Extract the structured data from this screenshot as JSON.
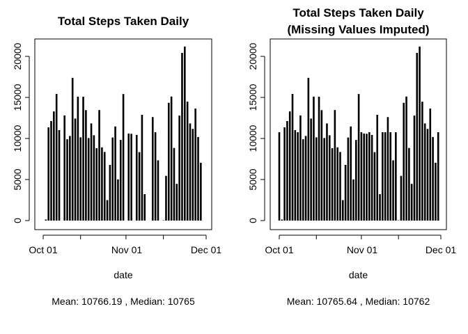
{
  "chart_data": [
    {
      "type": "bar",
      "title": "Total Steps Taken Daily",
      "xlabel": "date",
      "ylabel": "",
      "subtitle": "Mean: 10766.19 , Median: 10765",
      "xticks": [
        "Oct 01",
        "Nov 01",
        "Dec 01"
      ],
      "yticks": [
        "0",
        "5000",
        "10000",
        "15000",
        "20000"
      ],
      "xlim": [
        "2012-10-01",
        "2012-12-01"
      ],
      "ylim": [
        0,
        21500
      ],
      "grid": false,
      "x": [
        "2012-10-01",
        "2012-10-02",
        "2012-10-03",
        "2012-10-04",
        "2012-10-05",
        "2012-10-06",
        "2012-10-07",
        "2012-10-08",
        "2012-10-09",
        "2012-10-10",
        "2012-10-11",
        "2012-10-12",
        "2012-10-13",
        "2012-10-14",
        "2012-10-15",
        "2012-10-16",
        "2012-10-17",
        "2012-10-18",
        "2012-10-19",
        "2012-10-20",
        "2012-10-21",
        "2012-10-22",
        "2012-10-23",
        "2012-10-24",
        "2012-10-25",
        "2012-10-26",
        "2012-10-27",
        "2012-10-28",
        "2012-10-29",
        "2012-10-30",
        "2012-10-31",
        "2012-11-01",
        "2012-11-02",
        "2012-11-03",
        "2012-11-04",
        "2012-11-05",
        "2012-11-06",
        "2012-11-07",
        "2012-11-08",
        "2012-11-09",
        "2012-11-10",
        "2012-11-11",
        "2012-11-12",
        "2012-11-13",
        "2012-11-14",
        "2012-11-15",
        "2012-11-16",
        "2012-11-17",
        "2012-11-18",
        "2012-11-19",
        "2012-11-20",
        "2012-11-21",
        "2012-11-22",
        "2012-11-23",
        "2012-11-24",
        "2012-11-25",
        "2012-11-26",
        "2012-11-27",
        "2012-11-28",
        "2012-11-29",
        "2012-11-30"
      ],
      "values": [
        0,
        126,
        11352,
        12116,
        13294,
        15420,
        11015,
        0,
        12811,
        9900,
        10304,
        17382,
        12426,
        15098,
        10139,
        15084,
        13452,
        10056,
        11829,
        10395,
        8821,
        13460,
        8918,
        8355,
        2492,
        6778,
        10119,
        11458,
        5018,
        9819,
        15414,
        0,
        10600,
        10571,
        0,
        10439,
        8334,
        12883,
        3219,
        0,
        0,
        12608,
        10765,
        7336,
        0,
        41,
        5441,
        14339,
        15110,
        8841,
        4472,
        12787,
        20427,
        21194,
        14478,
        11834,
        11162,
        13646,
        10183,
        7047,
        0
      ]
    },
    {
      "type": "bar",
      "title": "Total Steps Taken Daily",
      "title_line2": "(Missing Values Imputed)",
      "xlabel": "date",
      "ylabel": "",
      "subtitle": "Mean: 10765.64 , Median: 10762",
      "xticks": [
        "Oct 01",
        "Nov 01",
        "Dec 01"
      ],
      "yticks": [
        "0",
        "5000",
        "10000",
        "15000",
        "20000"
      ],
      "xlim": [
        "2012-10-01",
        "2012-12-01"
      ],
      "ylim": [
        0,
        21500
      ],
      "grid": false,
      "x": [
        "2012-10-01",
        "2012-10-02",
        "2012-10-03",
        "2012-10-04",
        "2012-10-05",
        "2012-10-06",
        "2012-10-07",
        "2012-10-08",
        "2012-10-09",
        "2012-10-10",
        "2012-10-11",
        "2012-10-12",
        "2012-10-13",
        "2012-10-14",
        "2012-10-15",
        "2012-10-16",
        "2012-10-17",
        "2012-10-18",
        "2012-10-19",
        "2012-10-20",
        "2012-10-21",
        "2012-10-22",
        "2012-10-23",
        "2012-10-24",
        "2012-10-25",
        "2012-10-26",
        "2012-10-27",
        "2012-10-28",
        "2012-10-29",
        "2012-10-30",
        "2012-10-31",
        "2012-11-01",
        "2012-11-02",
        "2012-11-03",
        "2012-11-04",
        "2012-11-05",
        "2012-11-06",
        "2012-11-07",
        "2012-11-08",
        "2012-11-09",
        "2012-11-10",
        "2012-11-11",
        "2012-11-12",
        "2012-11-13",
        "2012-11-14",
        "2012-11-15",
        "2012-11-16",
        "2012-11-17",
        "2012-11-18",
        "2012-11-19",
        "2012-11-20",
        "2012-11-21",
        "2012-11-22",
        "2012-11-23",
        "2012-11-24",
        "2012-11-25",
        "2012-11-26",
        "2012-11-27",
        "2012-11-28",
        "2012-11-29",
        "2012-11-30"
      ],
      "values": [
        10762,
        126,
        11352,
        12116,
        13294,
        15420,
        11015,
        10762,
        12811,
        9900,
        10304,
        17382,
        12426,
        15098,
        10139,
        15084,
        13452,
        10056,
        11829,
        10395,
        8821,
        13460,
        8918,
        8355,
        2492,
        6778,
        10119,
        11458,
        5018,
        9819,
        15414,
        10762,
        10600,
        10571,
        10762,
        10439,
        8334,
        12883,
        3219,
        10762,
        10762,
        12608,
        10765,
        7336,
        10762,
        41,
        5441,
        14339,
        15110,
        8841,
        4472,
        12787,
        20427,
        21194,
        14478,
        11834,
        11162,
        13646,
        10183,
        7047,
        10762
      ]
    }
  ]
}
